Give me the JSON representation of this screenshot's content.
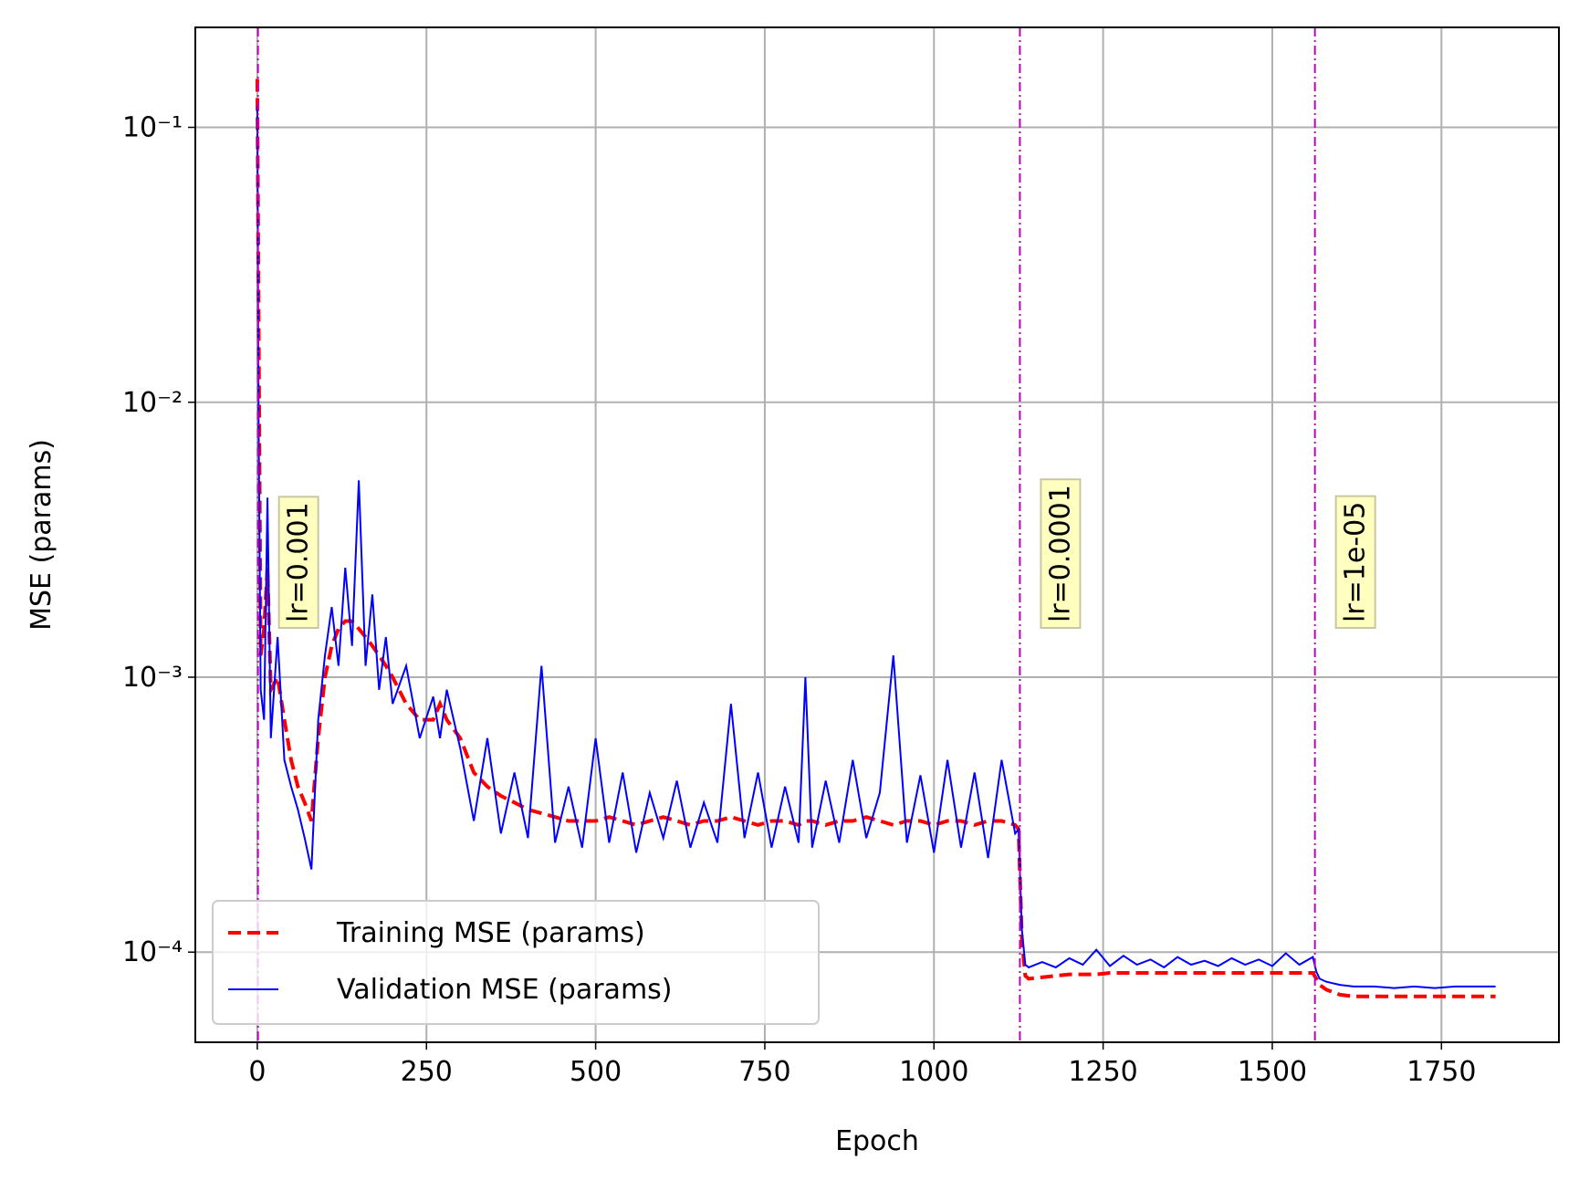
{
  "chart_data": {
    "type": "line",
    "xlabel": "Epoch",
    "ylabel": "MSE (params)",
    "xlim": [
      -91.6,
      1923.6
    ],
    "ylim": [
      4.7e-05,
      0.231
    ],
    "yscale": "log",
    "grid": true,
    "legend": "lower left",
    "xticks": [
      0,
      250,
      500,
      750,
      1000,
      1250,
      1500,
      1750
    ],
    "yticks": [
      {
        "value": 0.0001,
        "label": "10⁻⁴"
      },
      {
        "value": 0.001,
        "label": "10⁻³"
      },
      {
        "value": 0.01,
        "label": "10⁻²"
      },
      {
        "value": 0.1,
        "label": "10⁻¹"
      }
    ],
    "x": [
      0,
      2,
      5,
      10,
      15,
      20,
      30,
      40,
      50,
      60,
      70,
      80,
      90,
      100,
      110,
      120,
      130,
      140,
      150,
      160,
      170,
      180,
      190,
      200,
      220,
      240,
      260,
      270,
      280,
      300,
      320,
      340,
      360,
      380,
      400,
      420,
      440,
      460,
      480,
      500,
      520,
      540,
      560,
      580,
      600,
      620,
      640,
      660,
      680,
      700,
      720,
      740,
      760,
      780,
      800,
      810,
      820,
      840,
      860,
      880,
      900,
      920,
      940,
      960,
      980,
      1000,
      1020,
      1040,
      1060,
      1080,
      1100,
      1120,
      1125,
      1130,
      1135,
      1140,
      1160,
      1180,
      1200,
      1220,
      1240,
      1260,
      1280,
      1300,
      1320,
      1340,
      1360,
      1380,
      1400,
      1420,
      1440,
      1460,
      1480,
      1500,
      1520,
      1540,
      1560,
      1565,
      1570,
      1580,
      1600,
      1620,
      1650,
      1680,
      1710,
      1740,
      1770,
      1800,
      1830
    ],
    "series": [
      {
        "name": "Training MSE (params)",
        "color": "#ff0000",
        "dashed": true,
        "values": [
          0.15,
          0.02,
          0.0012,
          0.0015,
          0.0025,
          0.0009,
          0.001,
          0.0007,
          0.0005,
          0.0004,
          0.00035,
          0.0003,
          0.0006,
          0.001,
          0.0013,
          0.0015,
          0.0016,
          0.0016,
          0.0015,
          0.0014,
          0.0013,
          0.0012,
          0.0011,
          0.001,
          0.0008,
          0.0007,
          0.0007,
          0.0008,
          0.0007,
          0.0006,
          0.00045,
          0.0004,
          0.00037,
          0.00035,
          0.00033,
          0.00032,
          0.00031,
          0.0003,
          0.0003,
          0.0003,
          0.00031,
          0.0003,
          0.00029,
          0.0003,
          0.00031,
          0.0003,
          0.00029,
          0.0003,
          0.0003,
          0.00031,
          0.0003,
          0.00029,
          0.0003,
          0.0003,
          0.00029,
          0.0003,
          0.0003,
          0.00029,
          0.0003,
          0.0003,
          0.00031,
          0.0003,
          0.00029,
          0.0003,
          0.0003,
          0.00029,
          0.0003,
          0.0003,
          0.00029,
          0.0003,
          0.0003,
          0.00029,
          0.00028,
          0.00011,
          8.2e-05,
          8e-05,
          8.1e-05,
          8.2e-05,
          8.3e-05,
          8.3e-05,
          8.3e-05,
          8.4e-05,
          8.4e-05,
          8.4e-05,
          8.4e-05,
          8.4e-05,
          8.4e-05,
          8.4e-05,
          8.4e-05,
          8.4e-05,
          8.4e-05,
          8.4e-05,
          8.4e-05,
          8.4e-05,
          8.4e-05,
          8.4e-05,
          8.4e-05,
          8e-05,
          7.6e-05,
          7.3e-05,
          7e-05,
          6.9e-05,
          6.9e-05,
          6.9e-05,
          6.9e-05,
          6.9e-05,
          6.9e-05,
          6.9e-05,
          6.9e-05
        ]
      },
      {
        "name": "Validation MSE (params)",
        "color": "#0000ff",
        "dashed": false,
        "values": [
          0.12,
          0.008,
          0.0009,
          0.0007,
          0.0045,
          0.0006,
          0.0014,
          0.0005,
          0.0004,
          0.00033,
          0.00026,
          0.0002,
          0.0007,
          0.0012,
          0.0018,
          0.0011,
          0.0025,
          0.0013,
          0.0052,
          0.0011,
          0.002,
          0.0009,
          0.0014,
          0.0008,
          0.0011,
          0.0006,
          0.00085,
          0.0006,
          0.0009,
          0.00055,
          0.0003,
          0.0006,
          0.00027,
          0.00045,
          0.00026,
          0.0011,
          0.00025,
          0.0004,
          0.00024,
          0.0006,
          0.00025,
          0.00045,
          0.00023,
          0.00038,
          0.00026,
          0.00042,
          0.00024,
          0.00035,
          0.00025,
          0.0008,
          0.00026,
          0.00045,
          0.00024,
          0.0004,
          0.00025,
          0.001,
          0.00024,
          0.00042,
          0.00025,
          0.0005,
          0.00026,
          0.00038,
          0.0012,
          0.00025,
          0.00044,
          0.00023,
          0.0005,
          0.00024,
          0.00045,
          0.00022,
          0.0005,
          0.00027,
          0.00028,
          0.00012,
          9e-05,
          8.8e-05,
          9.2e-05,
          8.8e-05,
          9.5e-05,
          9e-05,
          0.000102,
          8.9e-05,
          9.7e-05,
          9e-05,
          9.4e-05,
          8.8e-05,
          9.6e-05,
          9e-05,
          9.3e-05,
          8.9e-05,
          9.5e-05,
          9e-05,
          9.4e-05,
          8.9e-05,
          9.9e-05,
          9e-05,
          9.6e-05,
          8.5e-05,
          8e-05,
          7.8e-05,
          7.6e-05,
          7.5e-05,
          7.5e-05,
          7.4e-05,
          7.5e-05,
          7.4e-05,
          7.5e-05,
          7.5e-05,
          7.5e-05
        ]
      }
    ],
    "annotations_color": "#bf00bf",
    "annotations": [
      {
        "x": 1,
        "label": "lr=0.001"
      },
      {
        "x": 1127,
        "label": "lr=0.0001"
      },
      {
        "x": 1563,
        "label": "lr=1e-05"
      }
    ]
  }
}
